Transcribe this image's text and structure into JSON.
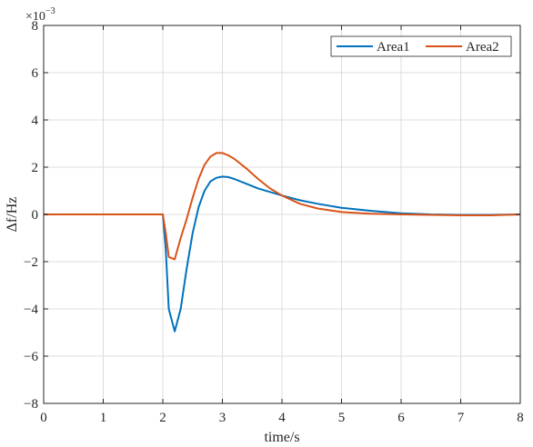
{
  "chart_data": {
    "type": "line",
    "xlabel": "time/s",
    "ylabel": "Δf/Hz",
    "y_multiplier": {
      "base": "×10",
      "exponent": "−3"
    },
    "xlim": [
      0,
      8
    ],
    "ylim": [
      -8,
      8
    ],
    "x_ticks": [
      0,
      1,
      2,
      3,
      4,
      5,
      6,
      7,
      8
    ],
    "y_ticks": [
      -8,
      -6,
      -4,
      -2,
      0,
      2,
      4,
      6,
      8
    ],
    "x_tick_labels": [
      "0",
      "1",
      "2",
      "3",
      "4",
      "5",
      "6",
      "7",
      "8"
    ],
    "y_tick_labels": [
      "−8",
      "−6",
      "−4",
      "−2",
      "0",
      "2",
      "4",
      "6",
      "8"
    ],
    "grid": true,
    "legend_position": "top-right",
    "series": [
      {
        "name": "Area1",
        "color": "#0072BD",
        "x": [
          0,
          2.0,
          2.05,
          2.1,
          2.2,
          2.3,
          2.4,
          2.5,
          2.6,
          2.7,
          2.8,
          2.9,
          3.0,
          3.1,
          3.2,
          3.4,
          3.6,
          3.8,
          4.0,
          4.3,
          4.6,
          5.0,
          5.5,
          6.0,
          6.5,
          7.0,
          7.5,
          8.0
        ],
        "y": [
          0,
          0,
          -1.5,
          -4.0,
          -4.95,
          -4.0,
          -2.3,
          -0.8,
          0.3,
          1.0,
          1.4,
          1.55,
          1.6,
          1.58,
          1.5,
          1.3,
          1.1,
          0.95,
          0.8,
          0.6,
          0.45,
          0.28,
          0.15,
          0.05,
          0.0,
          -0.02,
          -0.02,
          0.0
        ]
      },
      {
        "name": "Area2",
        "color": "#D95319",
        "x": [
          0,
          2.0,
          2.05,
          2.1,
          2.2,
          2.3,
          2.4,
          2.5,
          2.6,
          2.7,
          2.8,
          2.9,
          3.0,
          3.1,
          3.2,
          3.4,
          3.6,
          3.8,
          4.0,
          4.3,
          4.6,
          5.0,
          5.5,
          6.0,
          6.5,
          7.0,
          7.5,
          8.0
        ],
        "y": [
          0,
          0,
          -0.8,
          -1.8,
          -1.9,
          -1.0,
          -0.2,
          0.7,
          1.5,
          2.1,
          2.45,
          2.6,
          2.6,
          2.5,
          2.35,
          1.95,
          1.5,
          1.1,
          0.8,
          0.45,
          0.25,
          0.1,
          0.03,
          0.0,
          -0.02,
          -0.04,
          -0.04,
          0.0
        ]
      }
    ]
  }
}
